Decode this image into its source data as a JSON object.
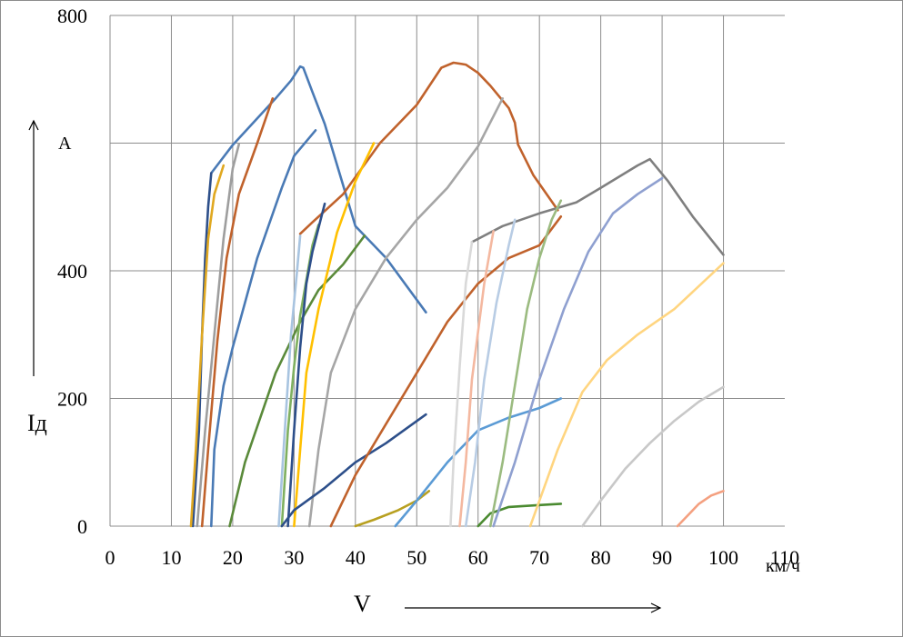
{
  "chart_data": {
    "type": "line",
    "title": "",
    "x_unit_label": "км/ч",
    "x_axis_label": "V",
    "y_axis_label": "Iд",
    "y_unit_label": "A",
    "xlim": [
      0,
      110
    ],
    "ylim": [
      0,
      800
    ],
    "x_ticks": [
      0,
      10,
      20,
      30,
      40,
      50,
      60,
      70,
      80,
      90,
      100,
      110
    ],
    "y_ticks": [
      0,
      200,
      400,
      800
    ],
    "grid": true,
    "legend": "none",
    "series": [
      {
        "color": "#4a7ab5",
        "points": [
          [
            16.5,
            553
          ],
          [
            20,
            597
          ],
          [
            27,
            670
          ],
          [
            29.5,
            698
          ],
          [
            31,
            720
          ],
          [
            31.5,
            718
          ],
          [
            33,
            680
          ],
          [
            35,
            630
          ],
          [
            40,
            470
          ],
          [
            45,
            420
          ],
          [
            51.5,
            335
          ]
        ]
      },
      {
        "color": "#c0622c",
        "points": [
          [
            31,
            458
          ],
          [
            33,
            476
          ],
          [
            38,
            520
          ],
          [
            44,
            600
          ],
          [
            50,
            660
          ],
          [
            54,
            718
          ],
          [
            56,
            726
          ],
          [
            58,
            723
          ],
          [
            60,
            710
          ],
          [
            62,
            690
          ],
          [
            65,
            655
          ],
          [
            66,
            632
          ],
          [
            66.5,
            598
          ],
          [
            69,
            550
          ],
          [
            73,
            495
          ]
        ]
      },
      {
        "color": "#7f7f7f",
        "points": [
          [
            59,
            445
          ],
          [
            64,
            470
          ],
          [
            70,
            490
          ],
          [
            76,
            507
          ],
          [
            80,
            530
          ],
          [
            86,
            565
          ],
          [
            88,
            575
          ],
          [
            91,
            540
          ],
          [
            95,
            485
          ],
          [
            100,
            425
          ]
        ]
      },
      {
        "color": "#2d4f8a",
        "points": [
          [
            13.5,
            0
          ],
          [
            14.5,
            150
          ],
          [
            15,
            300
          ],
          [
            15.5,
            420
          ],
          [
            16,
            500
          ],
          [
            16.5,
            553
          ]
        ]
      },
      {
        "color": "#e0a820",
        "points": [
          [
            13.2,
            0
          ],
          [
            14,
            120
          ],
          [
            15,
            300
          ],
          [
            16,
            450
          ],
          [
            17,
            520
          ],
          [
            18.5,
            565
          ]
        ]
      },
      {
        "color": "#c0622c",
        "points": [
          [
            15,
            0
          ],
          [
            16,
            120
          ],
          [
            17.5,
            290
          ],
          [
            19,
            420
          ],
          [
            21,
            520
          ],
          [
            24,
            600
          ],
          [
            26.5,
            670
          ]
        ]
      },
      {
        "color": "#9e9e9e",
        "points": [
          [
            14.2,
            0
          ],
          [
            15.5,
            150
          ],
          [
            17,
            300
          ],
          [
            18.5,
            450
          ],
          [
            20,
            560
          ],
          [
            21,
            598
          ]
        ]
      },
      {
        "color": "#4a7ab5",
        "points": [
          [
            16.5,
            0
          ],
          [
            17,
            120
          ],
          [
            18.5,
            220
          ],
          [
            20,
            280
          ],
          [
            24,
            420
          ],
          [
            28,
            530
          ],
          [
            30,
            580
          ],
          [
            33.5,
            620
          ]
        ]
      },
      {
        "color": "#5a8a3a",
        "points": [
          [
            19.5,
            0
          ],
          [
            22,
            100
          ],
          [
            27,
            240
          ],
          [
            31,
            320
          ],
          [
            34,
            370
          ],
          [
            38,
            410
          ],
          [
            41.5,
            455
          ]
        ]
      },
      {
        "color": "#a8c4e0",
        "points": [
          [
            27.5,
            0
          ],
          [
            28.5,
            150
          ],
          [
            29.5,
            300
          ],
          [
            30.5,
            400
          ],
          [
            31,
            455
          ]
        ]
      },
      {
        "color": "#7fb060",
        "points": [
          [
            28,
            0
          ],
          [
            29,
            150
          ],
          [
            30,
            250
          ],
          [
            31,
            330
          ],
          [
            33,
            440
          ],
          [
            34,
            472
          ]
        ]
      },
      {
        "color": "#2d4f8a",
        "points": [
          [
            29,
            0
          ],
          [
            30,
            150
          ],
          [
            31,
            280
          ],
          [
            32,
            380
          ],
          [
            33,
            430
          ],
          [
            35,
            505
          ]
        ]
      },
      {
        "color": "#ffc000",
        "points": [
          [
            30,
            0
          ],
          [
            31,
            120
          ],
          [
            32,
            240
          ],
          [
            34,
            340
          ],
          [
            37,
            460
          ],
          [
            40,
            540
          ],
          [
            43,
            600
          ]
        ]
      },
      {
        "color": "#a6a6a6",
        "points": [
          [
            32.5,
            0
          ],
          [
            34,
            120
          ],
          [
            36,
            240
          ],
          [
            40,
            340
          ],
          [
            45,
            420
          ],
          [
            50,
            480
          ],
          [
            55,
            530
          ],
          [
            60,
            595
          ],
          [
            64,
            670
          ]
        ]
      },
      {
        "color": "#2d4f8a",
        "points": [
          [
            28,
            0
          ],
          [
            30,
            25
          ],
          [
            35,
            60
          ],
          [
            40,
            100
          ],
          [
            45,
            130
          ],
          [
            51.5,
            175
          ]
        ]
      },
      {
        "color": "#c0622c",
        "points": [
          [
            36,
            0
          ],
          [
            40,
            80
          ],
          [
            45,
            160
          ],
          [
            50,
            240
          ],
          [
            55,
            320
          ],
          [
            60,
            380
          ],
          [
            65,
            420
          ],
          [
            70,
            440
          ],
          [
            73.5,
            485
          ]
        ]
      },
      {
        "color": "#b8a020",
        "points": [
          [
            40,
            0
          ],
          [
            43,
            10
          ],
          [
            47,
            25
          ],
          [
            50,
            40
          ],
          [
            52,
            55
          ]
        ]
      },
      {
        "color": "#5b9bd5",
        "points": [
          [
            46.5,
            0
          ],
          [
            50,
            40
          ],
          [
            55,
            100
          ],
          [
            60,
            150
          ],
          [
            65,
            170
          ],
          [
            70,
            185
          ],
          [
            73.5,
            200
          ]
        ]
      },
      {
        "color": "#d9d9d9",
        "points": [
          [
            55.5,
            0
          ],
          [
            56,
            100
          ],
          [
            57,
            250
          ],
          [
            58,
            380
          ],
          [
            59,
            445
          ]
        ]
      },
      {
        "color": "#f4b8a0",
        "points": [
          [
            57,
            0
          ],
          [
            58,
            100
          ],
          [
            59,
            230
          ],
          [
            61,
            380
          ],
          [
            62.5,
            462
          ]
        ]
      },
      {
        "color": "#b8cce4",
        "points": [
          [
            58,
            0
          ],
          [
            59.5,
            100
          ],
          [
            61,
            230
          ],
          [
            63,
            350
          ],
          [
            65,
            440
          ],
          [
            66,
            480
          ]
        ]
      },
      {
        "color": "#4a8a30",
        "points": [
          [
            60,
            0
          ],
          [
            62,
            20
          ],
          [
            65,
            30
          ],
          [
            70,
            33
          ],
          [
            73.5,
            35
          ]
        ]
      },
      {
        "color": "#9bbb80",
        "points": [
          [
            62,
            0
          ],
          [
            64,
            100
          ],
          [
            66,
            220
          ],
          [
            68,
            340
          ],
          [
            70,
            420
          ],
          [
            72,
            480
          ],
          [
            73.5,
            510
          ]
        ]
      },
      {
        "color": "#8fa0d0",
        "points": [
          [
            62.5,
            0
          ],
          [
            66,
            100
          ],
          [
            70,
            230
          ],
          [
            74,
            340
          ],
          [
            78,
            430
          ],
          [
            82,
            490
          ],
          [
            86,
            520
          ],
          [
            90,
            545
          ]
        ]
      },
      {
        "color": "#ffd580",
        "points": [
          [
            68.5,
            0
          ],
          [
            70,
            40
          ],
          [
            73,
            120
          ],
          [
            77,
            210
          ],
          [
            81,
            260
          ],
          [
            86,
            300
          ],
          [
            92,
            340
          ],
          [
            100,
            412
          ]
        ]
      },
      {
        "color": "#c8c8c8",
        "points": [
          [
            77,
            0
          ],
          [
            80,
            40
          ],
          [
            84,
            90
          ],
          [
            88,
            130
          ],
          [
            92,
            165
          ],
          [
            96,
            195
          ],
          [
            100,
            218
          ]
        ]
      },
      {
        "color": "#f4a080",
        "points": [
          [
            92.5,
            0
          ],
          [
            94,
            15
          ],
          [
            96,
            35
          ],
          [
            98,
            48
          ],
          [
            100,
            55
          ]
        ]
      }
    ]
  }
}
